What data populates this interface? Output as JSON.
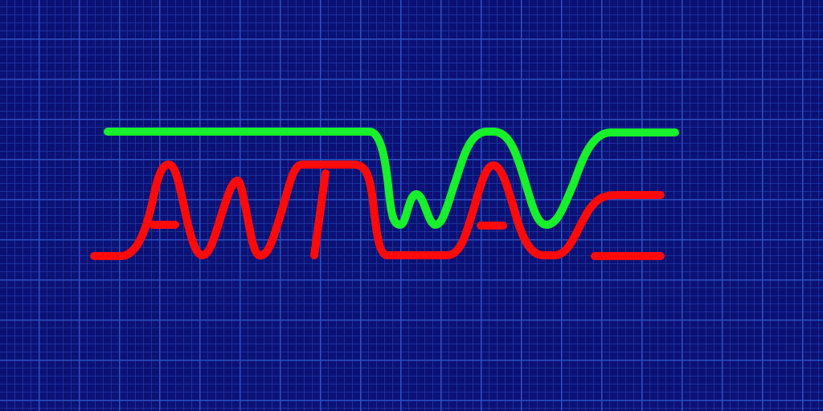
{
  "logo": {
    "wordmark": "ANTIWAVE"
  },
  "colors": {
    "background": "#0c1175",
    "grid_fine": "#1f3aa6",
    "grid_major": "#2a52c4",
    "upper_wave": "#17f02a",
    "lower_wave": "#ff0a0a"
  },
  "grid": {
    "visible": true
  }
}
